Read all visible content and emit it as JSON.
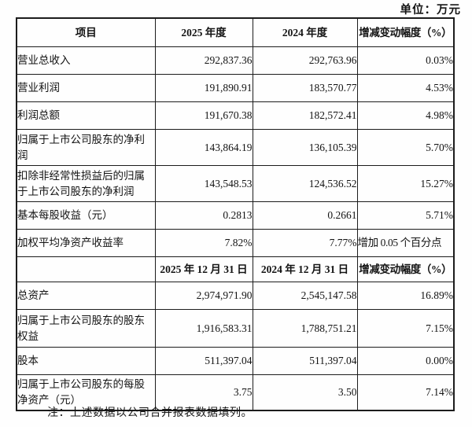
{
  "page": {
    "unit_label": "单位：万元",
    "note": "注：上述数据以公司合并报表数据填列。"
  },
  "table": {
    "header1": {
      "c0": "项目",
      "c1": "2025 年度",
      "c2": "2024 年度",
      "c3": "增减变动幅度（%）"
    },
    "income_rows": [
      {
        "label": "营业总收入",
        "y2025": "292,837.36",
        "y2024": "292,763.96",
        "change": "0.03%"
      },
      {
        "label": "营业利润",
        "y2025": "191,890.91",
        "y2024": "183,570.77",
        "change": "4.53%"
      },
      {
        "label": "利润总额",
        "y2025": "191,670.38",
        "y2024": "182,572.41",
        "change": "4.98%"
      },
      {
        "label": "归属于上市公司股东的净利润",
        "y2025": "143,864.19",
        "y2024": "136,105.39",
        "change": "5.70%"
      },
      {
        "label": "扣除非经常性损益后的归属于上市公司股东的净利润",
        "y2025": "143,548.53",
        "y2024": "124,536.52",
        "change": "15.27%"
      },
      {
        "label": "基本每股收益（元）",
        "y2025": "0.2813",
        "y2024": "0.2661",
        "change": "5.71%"
      },
      {
        "label": "加权平均净资产收益率",
        "y2025": "7.82%",
        "y2024": "7.77%",
        "change": "增加 0.05 个百分点"
      }
    ],
    "header2": {
      "c0": "",
      "c1": "2025 年 12 月 31 日",
      "c2": "2024 年 12 月 31 日",
      "c3": "增减变动幅度（%）"
    },
    "balance_rows": [
      {
        "label": "总资产",
        "y2025": "2,974,971.90",
        "y2024": "2,545,147.58",
        "change": "16.89%"
      },
      {
        "label": "归属于上市公司股东的股东权益",
        "y2025": "1,916,583.31",
        "y2024": "1,788,751.21",
        "change": "7.15%"
      },
      {
        "label": "股本",
        "y2025": "511,397.04",
        "y2024": "511,397.04",
        "change": "0.00%"
      },
      {
        "label": "归属于上市公司股东的每股净资产（元）",
        "y2025": "3.75",
        "y2024": "3.50",
        "change": "7.14%"
      }
    ]
  }
}
